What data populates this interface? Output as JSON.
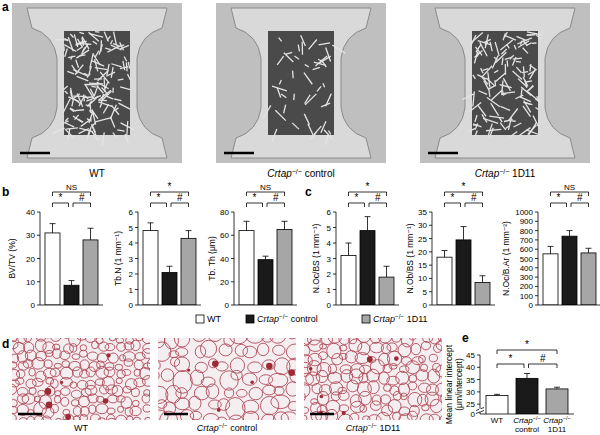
{
  "panel_labels": [
    "a",
    "b",
    "c",
    "d",
    "e"
  ],
  "images_a": [
    "WT",
    "Crtap−/− control",
    "Crtap−/− 1D11"
  ],
  "images_d": [
    "WT",
    "Crtap−/− control",
    "Crtap−/− 1D11"
  ],
  "legend": {
    "names": [
      "WT",
      "Crtap−/− control",
      "Crtap−/− 1D11"
    ],
    "colors": [
      "#ffffff",
      "#1a1a1a",
      "#a6a6a6"
    ]
  },
  "chart_data": [
    {
      "type": "bar",
      "y_label": "BV/TV (%)",
      "categories": [
        null,
        null,
        null
      ],
      "values": [
        31,
        8.5,
        28
      ],
      "errors": [
        4,
        2,
        5
      ],
      "colors": [
        "#ffffff",
        "#1a1a1a",
        "#a6a6a6"
      ],
      "ylim": [
        0,
        40
      ],
      "yticks": [
        0,
        10,
        20,
        30,
        40
      ],
      "comparisons": [
        {
          "pair": [
            0,
            2
          ],
          "label": "NS"
        },
        {
          "pair": [
            0,
            1
          ],
          "label": "*"
        },
        {
          "pair": [
            1,
            2
          ],
          "label": "#"
        }
      ]
    },
    {
      "type": "bar",
      "y_label": "Tb.N (1 mm⁻¹)",
      "categories": [
        null,
        null,
        null
      ],
      "values": [
        4.8,
        2.1,
        4.3
      ],
      "errors": [
        0.5,
        0.4,
        0.5
      ],
      "colors": [
        "#ffffff",
        "#1a1a1a",
        "#a6a6a6"
      ],
      "ylim": [
        0,
        6
      ],
      "yticks": [
        0,
        1,
        2,
        3,
        4,
        5,
        6
      ],
      "comparisons": [
        {
          "pair": [
            0,
            2
          ],
          "label": "*"
        },
        {
          "pair": [
            0,
            1
          ],
          "label": "*"
        },
        {
          "pair": [
            1,
            2
          ],
          "label": "#"
        }
      ]
    },
    {
      "type": "bar",
      "y_label": "Tb. Th (μm)",
      "categories": [
        null,
        null,
        null
      ],
      "values": [
        64,
        39,
        65
      ],
      "errors": [
        8,
        3,
        7
      ],
      "colors": [
        "#ffffff",
        "#1a1a1a",
        "#a6a6a6"
      ],
      "ylim": [
        0,
        80
      ],
      "yticks": [
        0,
        20,
        40,
        60,
        80
      ],
      "comparisons": [
        {
          "pair": [
            0,
            2
          ],
          "label": "NS"
        },
        {
          "pair": [
            0,
            1
          ],
          "label": "*"
        },
        {
          "pair": [
            1,
            2
          ],
          "label": "#"
        }
      ]
    },
    {
      "type": "bar",
      "y_label": "N.Oc/BS (1 mm⁻¹)",
      "categories": [
        null,
        null,
        null
      ],
      "values": [
        3.2,
        4.8,
        1.8
      ],
      "errors": [
        0.8,
        0.9,
        0.7
      ],
      "colors": [
        "#ffffff",
        "#1a1a1a",
        "#a6a6a6"
      ],
      "ylim": [
        0,
        6
      ],
      "yticks": [
        0,
        1,
        2,
        3,
        4,
        5,
        6
      ],
      "comparisons": [
        {
          "pair": [
            0,
            2
          ],
          "label": "*"
        },
        {
          "pair": [
            0,
            1
          ],
          "label": "*"
        },
        {
          "pair": [
            1,
            2
          ],
          "label": "#"
        }
      ]
    },
    {
      "type": "bar",
      "y_label": "N.Ob/BS (1 mm⁻¹)",
      "categories": [
        null,
        null,
        null
      ],
      "values": [
        18,
        24.5,
        8.5
      ],
      "errors": [
        2.5,
        5,
        2.5
      ],
      "colors": [
        "#ffffff",
        "#1a1a1a",
        "#a6a6a6"
      ],
      "ylim": [
        0,
        35
      ],
      "yticks": [
        0,
        5,
        10,
        15,
        20,
        25,
        30,
        35
      ],
      "comparisons": [
        {
          "pair": [
            0,
            2
          ],
          "label": "*"
        },
        {
          "pair": [
            0,
            1
          ],
          "label": "*"
        },
        {
          "pair": [
            1,
            2
          ],
          "label": "#"
        }
      ]
    },
    {
      "type": "bar",
      "y_label": "N.Oc/B.Ar (1 mm⁻²)",
      "categories": [
        null,
        null,
        null
      ],
      "values": [
        550,
        740,
        560
      ],
      "errors": [
        80,
        60,
        50
      ],
      "colors": [
        "#ffffff",
        "#1a1a1a",
        "#a6a6a6"
      ],
      "ylim": [
        0,
        1000
      ],
      "yticks": [
        0,
        100,
        200,
        300,
        400,
        500,
        600,
        700,
        800,
        900,
        1000
      ],
      "comparisons": [
        {
          "pair": [
            0,
            2
          ],
          "label": "NS"
        },
        {
          "pair": [
            0,
            1
          ],
          "label": "*"
        },
        {
          "pair": [
            1,
            2
          ],
          "label": "#"
        }
      ]
    },
    {
      "type": "bar",
      "y_label": "Mean linear intercept (μm/intercept)",
      "categories": [
        "WT",
        "Crtap−/− control",
        "Crtap−/− 1D11"
      ],
      "values": [
        28.5,
        35.5,
        31.2
      ],
      "errors": [
        0.5,
        2,
        0.7
      ],
      "colors": [
        "#ffffff",
        "#1a1a1a",
        "#a6a6a6"
      ],
      "ylim": [
        21,
        45
      ],
      "yticks": [
        25,
        30,
        35,
        40,
        45
      ],
      "y_break_label": "0",
      "comparisons": [
        {
          "pair": [
            0,
            2
          ],
          "label": "*"
        },
        {
          "pair": [
            0,
            1
          ],
          "label": "*"
        },
        {
          "pair": [
            1,
            2
          ],
          "label": "#"
        }
      ]
    }
  ]
}
